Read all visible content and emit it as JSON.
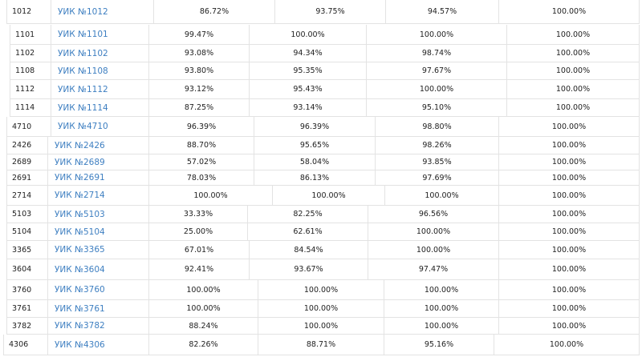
{
  "table": {
    "rows": [
      {
        "num": "1012",
        "name": "УИК №1012",
        "v1": "86.72%",
        "v2": "93.75%",
        "v3": "94.57%",
        "v4": "100.00%"
      },
      {
        "num": "1101",
        "name": "УИК №1101",
        "v1": "99.47%",
        "v2": "100.00%",
        "v3": "100.00%",
        "v4": "100.00%"
      },
      {
        "num": "1102",
        "name": "УИК №1102",
        "v1": "93.08%",
        "v2": "94.34%",
        "v3": "98.74%",
        "v4": "100.00%"
      },
      {
        "num": "1108",
        "name": "УИК №1108",
        "v1": "93.80%",
        "v2": "95.35%",
        "v3": "97.67%",
        "v4": "100.00%"
      },
      {
        "num": "1112",
        "name": "УИК №1112",
        "v1": "93.12%",
        "v2": "95.43%",
        "v3": "100.00%",
        "v4": "100.00%"
      },
      {
        "num": "1114",
        "name": "УИК №1114",
        "v1": "87.25%",
        "v2": "93.14%",
        "v3": "95.10%",
        "v4": "100.00%"
      },
      {
        "num": "4710",
        "name": "УИК №4710",
        "v1": "96.39%",
        "v2": "96.39%",
        "v3": "98.80%",
        "v4": "100.00%"
      },
      {
        "num": "2426",
        "name": "УИК №2426",
        "v1": "88.70%",
        "v2": "95.65%",
        "v3": "98.26%",
        "v4": "100.00%"
      },
      {
        "num": "2689",
        "name": "УИК №2689",
        "v1": "57.02%",
        "v2": "58.04%",
        "v3": "93.85%",
        "v4": "100.00%"
      },
      {
        "num": "2691",
        "name": "УИК №2691",
        "v1": "78.03%",
        "v2": "86.13%",
        "v3": "97.69%",
        "v4": "100.00%"
      },
      {
        "num": "2714",
        "name": "УИК №2714",
        "v1": "100.00%",
        "v2": "100.00%",
        "v3": "100.00%",
        "v4": "100.00%"
      },
      {
        "num": "5103",
        "name": "УИК №5103",
        "v1": "33.33%",
        "v2": "82.25%",
        "v3": "96.56%",
        "v4": "100.00%"
      },
      {
        "num": "5104",
        "name": "УИК №5104",
        "v1": "25.00%",
        "v2": "62.61%",
        "v3": "100.00%",
        "v4": "100.00%"
      },
      {
        "num": "3365",
        "name": "УИК №3365",
        "v1": "67.01%",
        "v2": "84.54%",
        "v3": "100.00%",
        "v4": "100.00%"
      },
      {
        "num": "3604",
        "name": "УИК №3604",
        "v1": "92.41%",
        "v2": "93.67%",
        "v3": "97.47%",
        "v4": "100.00%"
      },
      {
        "num": "3760",
        "name": "УИК №3760",
        "v1": "100.00%",
        "v2": "100.00%",
        "v3": "100.00%",
        "v4": "100.00%"
      },
      {
        "num": "3761",
        "name": "УИК №3761",
        "v1": "100.00%",
        "v2": "100.00%",
        "v3": "100.00%",
        "v4": "100.00%"
      },
      {
        "num": "3782",
        "name": "УИК №3782",
        "v1": "88.24%",
        "v2": "100.00%",
        "v3": "100.00%",
        "v4": "100.00%"
      },
      {
        "num": "4306",
        "name": "УИК №4306",
        "v1": "82.26%",
        "v2": "88.71%",
        "v3": "95.16%",
        "v4": "100.00%"
      }
    ]
  }
}
